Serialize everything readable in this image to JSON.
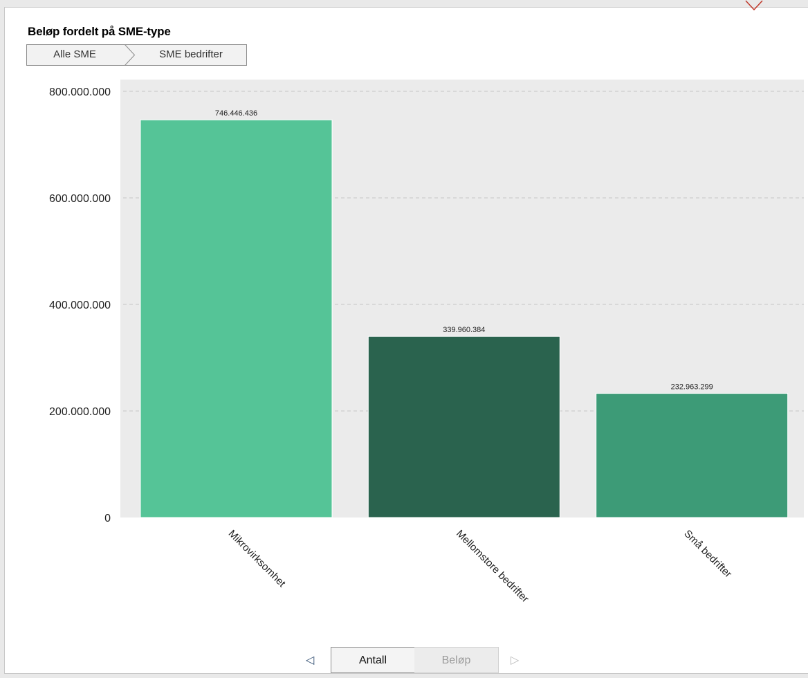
{
  "panel": {
    "title": "Beløp fordelt på SME-type"
  },
  "breadcrumb": {
    "items": [
      "Alle SME",
      "SME bedrifter"
    ]
  },
  "pager": {
    "prev_icon": "triangle-left-icon",
    "next_icon": "triangle-right-icon",
    "tabs": [
      "Antall",
      "Beløp"
    ],
    "active_tab": "Antall"
  },
  "chart_data": {
    "type": "bar",
    "title": "Beløp fordelt på SME-type",
    "xlabel": "",
    "ylabel": "",
    "categories": [
      "Mikrovirksomhet",
      "Mellomstore bedrifter",
      "Små bedrifter"
    ],
    "values": [
      746446436,
      339960384,
      232963299
    ],
    "value_labels": [
      "746.446.436",
      "339.960.384",
      "232.963.299"
    ],
    "colors": [
      "#55c497",
      "#2a634e",
      "#3d9b77"
    ],
    "ylim": [
      0,
      800000000
    ],
    "yticks": [
      0,
      200000000,
      400000000,
      600000000,
      800000000
    ],
    "ytick_labels": [
      "0",
      "200.000.000",
      "400.000.000",
      "600.000.000",
      "800.000.000"
    ],
    "grid": true,
    "background": "#ebebeb"
  }
}
